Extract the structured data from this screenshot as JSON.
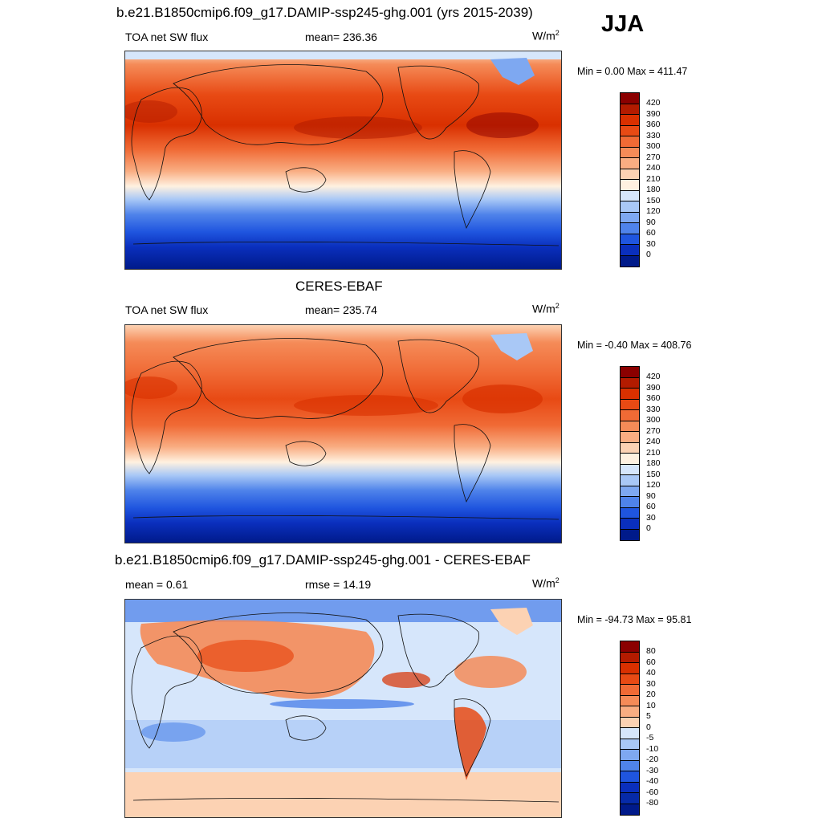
{
  "season": "JJA",
  "unit_main": "W/m",
  "unit_sup": "2",
  "panels": [
    {
      "title": "b.e21.B1850cmip6.f09_g17.DAMIP-ssp245-ghg.001 (yrs 2015-2039)",
      "left": "TOA net SW flux",
      "center": "mean= 236.36",
      "minmax": "Min =   0.00 Max = 411.47"
    },
    {
      "title": "CERES-EBAF",
      "left": "TOA net SW flux",
      "center": "mean= 235.74",
      "minmax": "Min =  -0.40 Max = 408.76"
    },
    {
      "title": "b.e21.B1850cmip6.f09_g17.DAMIP-ssp245-ghg.001 - CERES-EBAF",
      "left": "mean =   0.61",
      "center": "rmse =  14.19",
      "minmax": "Min = -94.73 Max =  95.81"
    }
  ],
  "colorbars": {
    "flux": {
      "labels": [
        "420",
        "390",
        "360",
        "330",
        "300",
        "270",
        "240",
        "210",
        "180",
        "150",
        "120",
        "90",
        "60",
        "30",
        "0"
      ],
      "colors": [
        "#8b0000",
        "#b31b00",
        "#d93000",
        "#e84a14",
        "#f06a35",
        "#f58b58",
        "#f9ad82",
        "#fcd2b3",
        "#fff1e0",
        "#d6e6fb",
        "#a9c8f6",
        "#7ea8f1",
        "#4f83ea",
        "#1f55df",
        "#0a2fbd",
        "#001a8a"
      ]
    },
    "diff": {
      "labels": [
        "80",
        "60",
        "40",
        "30",
        "20",
        "10",
        "5",
        "0",
        "-5",
        "-10",
        "-20",
        "-30",
        "-40",
        "-60",
        "-80"
      ],
      "colors": [
        "#8b0000",
        "#b31b00",
        "#d93000",
        "#e84a14",
        "#f06a35",
        "#f58b58",
        "#f9ad82",
        "#fcd2b3",
        "#d6e6fb",
        "#a9c8f6",
        "#7ea8f1",
        "#4f83ea",
        "#1f55df",
        "#0a2fbd",
        "#062aa8",
        "#001a8a"
      ]
    }
  }
}
